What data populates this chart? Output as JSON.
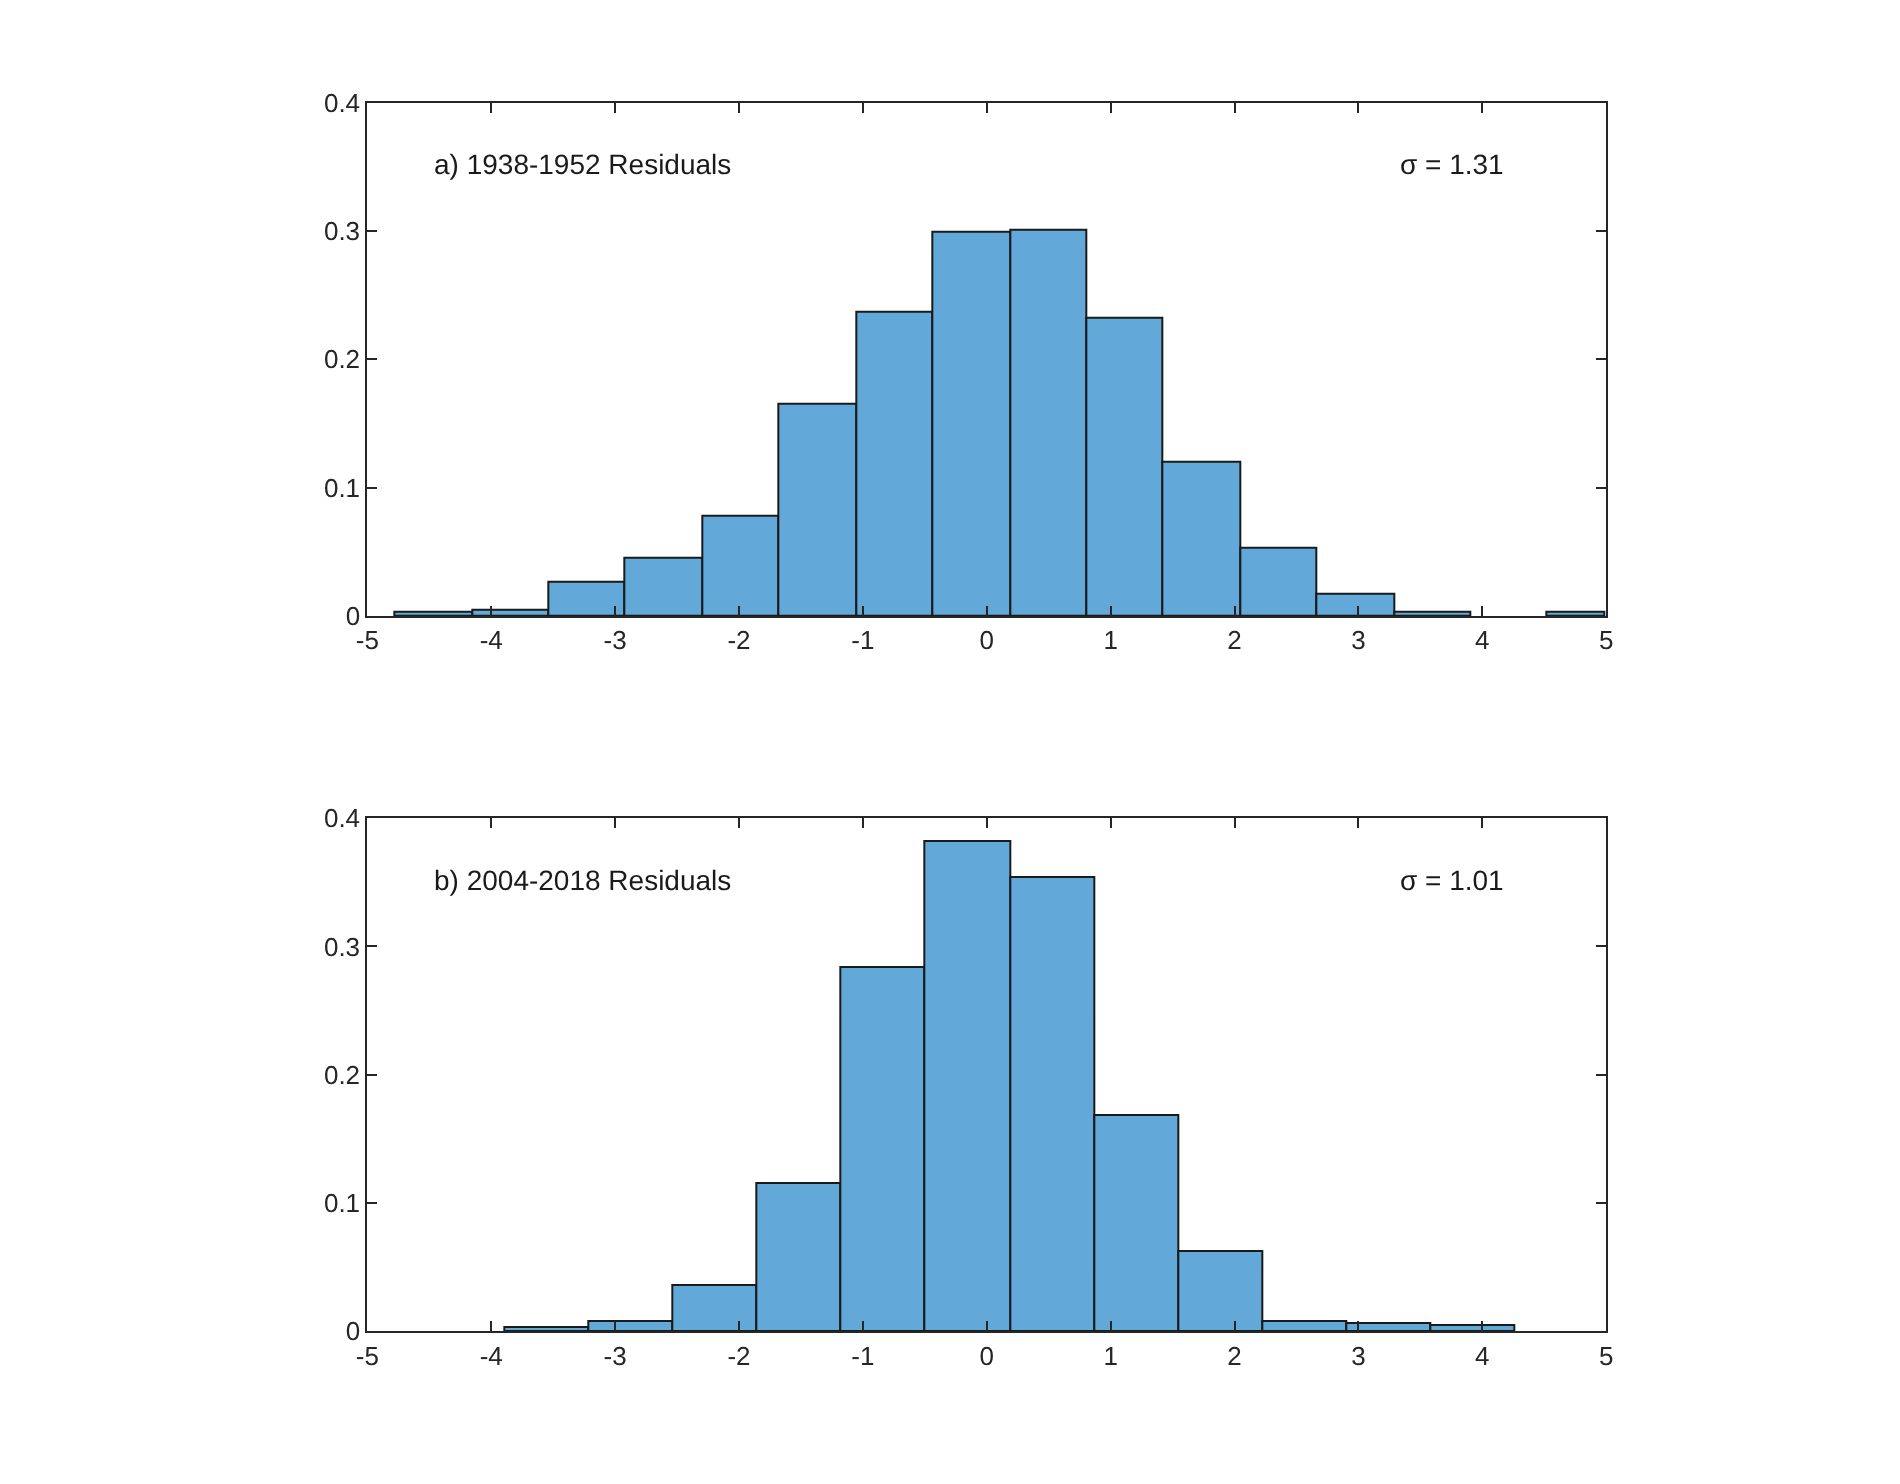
{
  "chart_data": [
    {
      "type": "histogram",
      "bins": [
        -4.77,
        -4.15,
        -3.53,
        -2.91,
        -2.29,
        -1.67,
        -1.05,
        -0.43,
        0.19,
        0.81,
        1.43,
        2.05,
        2.67,
        3.29,
        3.91,
        4.53,
        5.0
      ],
      "values": [
        0.003,
        0.004,
        0.026,
        0.044,
        0.077,
        0.164,
        0.236,
        0.299,
        0.3,
        0.232,
        0.119,
        0.052,
        0.016,
        0.003,
        null,
        0.002
      ],
      "color": "#62a8d8",
      "xlim": [
        -5,
        5
      ],
      "xticks": [
        -5,
        -4,
        -3,
        -2,
        -1,
        0,
        1,
        2,
        3,
        4,
        5
      ],
      "ylim": [
        0,
        0.4
      ],
      "yticks": [
        0,
        0.1,
        0.2,
        0.3,
        0.4
      ],
      "grid": false,
      "legend": false,
      "annotations": [
        "a) 1938-1952 Residuals",
        "σ = 1.31"
      ]
    },
    {
      "type": "histogram",
      "bins": [
        -3.89,
        -3.21,
        -2.53,
        -1.85,
        -1.17,
        -0.49,
        0.19,
        0.87,
        1.55,
        2.23,
        2.91,
        3.59,
        4.27
      ],
      "values": [
        0.002,
        0.007,
        0.036,
        0.114,
        0.283,
        0.381,
        0.353,
        0.167,
        0.061,
        0.007,
        0.006,
        0.004
      ],
      "color": "#62a8d8",
      "xlim": [
        -5,
        5
      ],
      "xticks": [
        -5,
        -4,
        -3,
        -2,
        -1,
        0,
        1,
        2,
        3,
        4,
        5
      ],
      "ylim": [
        0,
        0.4
      ],
      "yticks": [
        0,
        0.1,
        0.2,
        0.3,
        0.4
      ],
      "grid": false,
      "legend": false,
      "annotations": [
        "b) 2004-2018 Residuals",
        "σ = 1.01"
      ]
    }
  ]
}
